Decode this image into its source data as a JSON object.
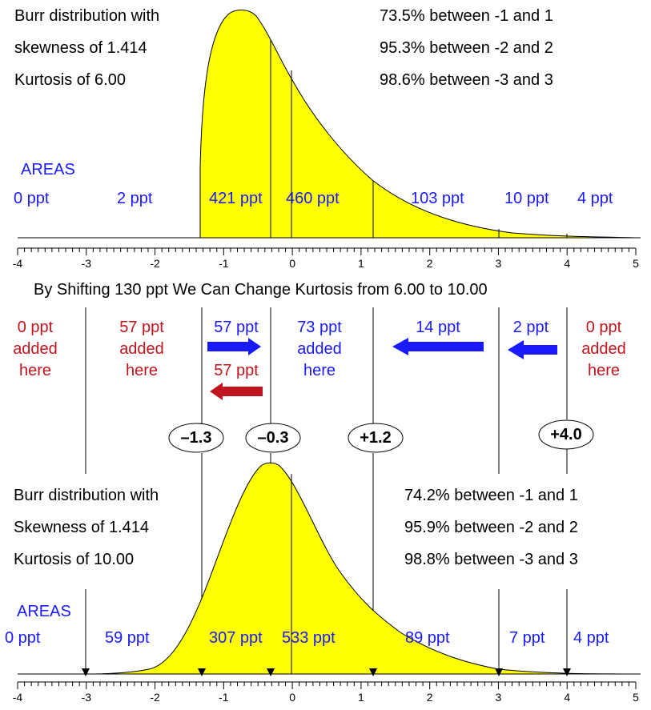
{
  "colors": {
    "fill": "#ffff00",
    "blue": "#1a1aff",
    "red": "#c0141e",
    "ink": "#000000"
  },
  "top": {
    "desc": [
      "Burr distribution with",
      "skewness of 1.414",
      "Kurtosis of 6.00"
    ],
    "pct": [
      "73.5% between -1 and 1",
      "95.3% between -2 and 2",
      "98.6% between -3 and 3"
    ],
    "areas_title": "AREAS",
    "areas": [
      "0 ppt",
      "2 ppt",
      "421 ppt",
      "460 ppt",
      "103 ppt",
      "10 ppt",
      "4 ppt"
    ]
  },
  "middle": {
    "heading": "By Shifting 130 ppt We Can Change Kurtosis from 6.00 to 10.00",
    "notes": {
      "r1": "0 ppt\nadded\nhere",
      "r2": "57 ppt\nadded\nhere",
      "b3": "57 ppt",
      "r3": "57 ppt",
      "b4": "73 ppt\nadded\nhere",
      "b5": "14 ppt",
      "b6": "2 ppt",
      "r7": "0 ppt\nadded\nhere"
    },
    "markers": [
      "–1.3",
      "–0.3",
      "+1.2",
      "+4.0"
    ]
  },
  "bottom": {
    "desc": [
      "Burr distribution with",
      "Skewness of 1.414",
      "Kurtosis of 10.00"
    ],
    "pct": [
      "74.2% between -1 and 1",
      "95.9% between -2 and 2",
      "98.8% between -3 and 3"
    ],
    "areas_title": "AREAS",
    "areas": [
      "0 ppt",
      "59 ppt",
      "307 ppt",
      "533 ppt",
      "89 ppt",
      "7 ppt",
      "4 ppt"
    ]
  },
  "axis": {
    "ticks": [
      "-4",
      "-3",
      "-2",
      "-1",
      "0",
      "1",
      "2",
      "3",
      "4",
      "5"
    ]
  }
}
